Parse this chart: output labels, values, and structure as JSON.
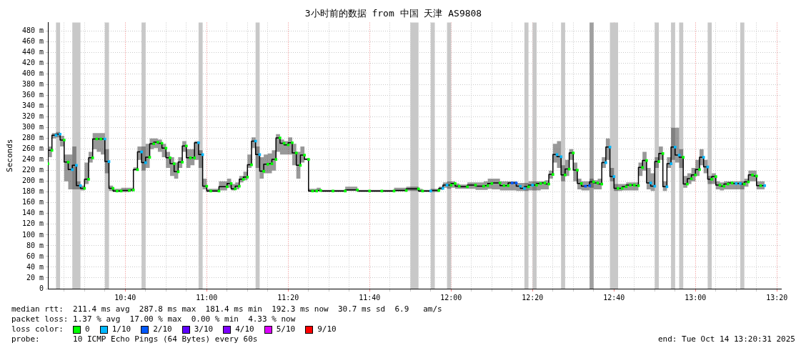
{
  "chart_data": {
    "type": "step",
    "title": "3小时前的数据 from 中国 天津 AS9808",
    "ylabel": "Seconds",
    "legend_title": "loss color:",
    "legend": "bottom",
    "grid": true,
    "annotations": [
      "median rtt:  211.4 ms avg  287.8 ms max  181.4 ms min  192.3 ms now  30.7 ms sd  6.9   am/s",
      "packet loss: 1.37 % avg  17.00 % max  0.00 % min  4.33 % now",
      "probe:       10 ICMP Echo Pings (64 Bytes) every 60s",
      "end: Tue Oct 14 13:20:31 2025"
    ],
    "xlim": [
      "2025-10-14T10:21",
      "2025-10-14T13:21"
    ],
    "xticks": [
      {
        "value": "2025-10-14T10:25",
        "label": null
      },
      {
        "value": "2025-10-14T10:30",
        "label": null
      },
      {
        "value": "2025-10-14T10:35",
        "label": null
      },
      {
        "value": "2025-10-14T10:40",
        "label": "10:40"
      },
      {
        "value": "2025-10-14T10:45",
        "label": null
      },
      {
        "value": "2025-10-14T10:50",
        "label": null
      },
      {
        "value": "2025-10-14T10:55",
        "label": null
      },
      {
        "value": "2025-10-14T11:00",
        "label": "11:00"
      },
      {
        "value": "2025-10-14T11:05",
        "label": null
      },
      {
        "value": "2025-10-14T11:10",
        "label": null
      },
      {
        "value": "2025-10-14T11:15",
        "label": null
      },
      {
        "value": "2025-10-14T11:20",
        "label": "11:20"
      },
      {
        "value": "2025-10-14T11:25",
        "label": null
      },
      {
        "value": "2025-10-14T11:30",
        "label": null
      },
      {
        "value": "2025-10-14T11:35",
        "label": null
      },
      {
        "value": "2025-10-14T11:40",
        "label": "11:40"
      },
      {
        "value": "2025-10-14T11:45",
        "label": null
      },
      {
        "value": "2025-10-14T11:50",
        "label": null
      },
      {
        "value": "2025-10-14T11:55",
        "label": null
      },
      {
        "value": "2025-10-14T12:00",
        "label": "12:00"
      },
      {
        "value": "2025-10-14T12:05",
        "label": null
      },
      {
        "value": "2025-10-14T12:10",
        "label": null
      },
      {
        "value": "2025-10-14T12:15",
        "label": null
      },
      {
        "value": "2025-10-14T12:20",
        "label": "12:20"
      },
      {
        "value": "2025-10-14T12:25",
        "label": null
      },
      {
        "value": "2025-10-14T12:30",
        "label": null
      },
      {
        "value": "2025-10-14T12:35",
        "label": null
      },
      {
        "value": "2025-10-14T12:40",
        "label": "12:40"
      },
      {
        "value": "2025-10-14T12:45",
        "label": null
      },
      {
        "value": "2025-10-14T12:50",
        "label": null
      },
      {
        "value": "2025-10-14T12:55",
        "label": null
      },
      {
        "value": "2025-10-14T13:00",
        "label": "13:00"
      },
      {
        "value": "2025-10-14T13:05",
        "label": null
      },
      {
        "value": "2025-10-14T13:10",
        "label": null
      },
      {
        "value": "2025-10-14T13:15",
        "label": null
      },
      {
        "value": "2025-10-14T13:20",
        "label": "13:20"
      }
    ],
    "ylim": [
      0,
      496
    ],
    "yticks": [
      {
        "value": 0,
        "label": "0"
      },
      {
        "value": 20,
        "label": "20 m"
      },
      {
        "value": 40,
        "label": "40 m"
      },
      {
        "value": 60,
        "label": "60 m"
      },
      {
        "value": 80,
        "label": "80 m"
      },
      {
        "value": 100,
        "label": "100 m"
      },
      {
        "value": 120,
        "label": "120 m"
      },
      {
        "value": 140,
        "label": "140 m"
      },
      {
        "value": 160,
        "label": "160 m"
      },
      {
        "value": 180,
        "label": "180 m"
      },
      {
        "value": 200,
        "label": "200 m"
      },
      {
        "value": 220,
        "label": "220 m"
      },
      {
        "value": 240,
        "label": "240 m"
      },
      {
        "value": 260,
        "label": "260 m"
      },
      {
        "value": 280,
        "label": "280 m"
      },
      {
        "value": 300,
        "label": "300 m"
      },
      {
        "value": 320,
        "label": "320 m"
      },
      {
        "value": 340,
        "label": "340 m"
      },
      {
        "value": 360,
        "label": "360 m"
      },
      {
        "value": 380,
        "label": "380 m"
      },
      {
        "value": 400,
        "label": "400 m"
      },
      {
        "value": 420,
        "label": "420 m"
      },
      {
        "value": 440,
        "label": "440 m"
      },
      {
        "value": 460,
        "label": "460 m"
      },
      {
        "value": 480,
        "label": "480 m"
      }
    ],
    "bands": [
      {
        "axis": "x",
        "from": "2025-10-14T10:23",
        "to": "2025-10-14T10:24",
        "color": "#c8c8c8"
      },
      {
        "axis": "x",
        "from": "2025-10-14T10:27",
        "to": "2025-10-14T10:29",
        "color": "#c8c8c8"
      },
      {
        "axis": "x",
        "from": "2025-10-14T10:35",
        "to": "2025-10-14T10:36",
        "color": "#c8c8c8"
      },
      {
        "axis": "x",
        "from": "2025-10-14T10:44",
        "to": "2025-10-14T10:45",
        "color": "#c8c8c8"
      },
      {
        "axis": "x",
        "from": "2025-10-14T10:58",
        "to": "2025-10-14T10:59",
        "color": "#c8c8c8"
      },
      {
        "axis": "x",
        "from": "2025-10-14T11:12",
        "to": "2025-10-14T11:13",
        "color": "#c8c8c8"
      },
      {
        "axis": "x",
        "from": "2025-10-14T11:50",
        "to": "2025-10-14T11:52",
        "color": "#c8c8c8"
      },
      {
        "axis": "x",
        "from": "2025-10-14T11:55",
        "to": "2025-10-14T11:56",
        "color": "#c8c8c8"
      },
      {
        "axis": "x",
        "from": "2025-10-14T11:59",
        "to": "2025-10-14T12:00",
        "color": "#c8c8c8"
      },
      {
        "axis": "x",
        "from": "2025-10-14T12:18",
        "to": "2025-10-14T12:19",
        "color": "#c8c8c8"
      },
      {
        "axis": "x",
        "from": "2025-10-14T12:20",
        "to": "2025-10-14T12:21",
        "color": "#c8c8c8"
      },
      {
        "axis": "x",
        "from": "2025-10-14T12:27",
        "to": "2025-10-14T12:28",
        "color": "#c8c8c8"
      },
      {
        "axis": "x",
        "from": "2025-10-14T12:34",
        "to": "2025-10-14T12:35",
        "color": "#a0a0a0"
      },
      {
        "axis": "x",
        "from": "2025-10-14T12:39",
        "to": "2025-10-14T12:41",
        "color": "#c8c8c8"
      },
      {
        "axis": "x",
        "from": "2025-10-14T12:50",
        "to": "2025-10-14T12:51",
        "color": "#c8c8c8"
      },
      {
        "axis": "x",
        "from": "2025-10-14T12:54",
        "to": "2025-10-14T12:55",
        "color": "#c8c8c8"
      },
      {
        "axis": "x",
        "from": "2025-10-14T12:56",
        "to": "2025-10-14T12:57",
        "color": "#c8c8c8"
      },
      {
        "axis": "x",
        "from": "2025-10-14T13:03",
        "to": "2025-10-14T13:04",
        "color": "#c8c8c8"
      },
      {
        "axis": "x",
        "from": "2025-10-14T13:11",
        "to": "2025-10-14T13:12",
        "color": "#c8c8c8"
      }
    ],
    "series": [
      {
        "type": "step",
        "color": "#000000",
        "x": [
          "2025-10-14T10:21",
          "2025-10-14T10:22",
          "2025-10-14T10:23",
          "2025-10-14T10:24",
          "2025-10-14T10:25",
          "2025-10-14T10:26",
          "2025-10-14T10:27",
          "2025-10-14T10:28",
          "2025-10-14T10:29",
          "2025-10-14T10:30",
          "2025-10-14T10:31",
          "2025-10-14T10:32",
          "2025-10-14T10:33",
          "2025-10-14T10:34",
          "2025-10-14T10:35",
          "2025-10-14T10:36",
          "2025-10-14T10:37",
          "2025-10-14T10:38",
          "2025-10-14T10:39",
          "2025-10-14T10:41",
          "2025-10-14T10:42",
          "2025-10-14T10:43",
          "2025-10-14T10:44",
          "2025-10-14T10:45",
          "2025-10-14T10:46",
          "2025-10-14T10:47",
          "2025-10-14T10:48",
          "2025-10-14T10:49",
          "2025-10-14T10:50",
          "2025-10-14T10:51",
          "2025-10-14T10:52",
          "2025-10-14T10:53",
          "2025-10-14T10:54",
          "2025-10-14T10:55",
          "2025-10-14T10:56",
          "2025-10-14T10:57",
          "2025-10-14T10:58",
          "2025-10-14T10:59",
          "2025-10-14T11:00",
          "2025-10-14T11:01",
          "2025-10-14T11:03",
          "2025-10-14T11:05",
          "2025-10-14T11:06",
          "2025-10-14T11:07",
          "2025-10-14T11:08",
          "2025-10-14T11:09",
          "2025-10-14T11:10",
          "2025-10-14T11:11",
          "2025-10-14T11:12",
          "2025-10-14T11:13",
          "2025-10-14T11:14",
          "2025-10-14T11:15",
          "2025-10-14T11:16",
          "2025-10-14T11:17",
          "2025-10-14T11:18",
          "2025-10-14T11:19",
          "2025-10-14T11:20",
          "2025-10-14T11:21",
          "2025-10-14T11:22",
          "2025-10-14T11:23",
          "2025-10-14T11:24",
          "2025-10-14T11:25",
          "2025-10-14T11:26",
          "2025-10-14T11:27",
          "2025-10-14T11:28",
          "2025-10-14T11:31",
          "2025-10-14T11:34",
          "2025-10-14T11:37",
          "2025-10-14T11:40",
          "2025-10-14T11:43",
          "2025-10-14T11:46",
          "2025-10-14T11:49",
          "2025-10-14T11:52",
          "2025-10-14T11:53",
          "2025-10-14T11:55",
          "2025-10-14T11:57",
          "2025-10-14T11:58",
          "2025-10-14T11:59",
          "2025-10-14T12:00",
          "2025-10-14T12:01",
          "2025-10-14T12:02",
          "2025-10-14T12:04",
          "2025-10-14T12:06",
          "2025-10-14T12:08",
          "2025-10-14T12:09",
          "2025-10-14T12:10",
          "2025-10-14T12:12",
          "2025-10-14T12:13",
          "2025-10-14T12:14",
          "2025-10-14T12:15",
          "2025-10-14T12:16",
          "2025-10-14T12:17",
          "2025-10-14T12:18",
          "2025-10-14T12:19",
          "2025-10-14T12:20",
          "2025-10-14T12:21",
          "2025-10-14T12:22",
          "2025-10-14T12:23",
          "2025-10-14T12:24",
          "2025-10-14T12:25",
          "2025-10-14T12:26",
          "2025-10-14T12:27",
          "2025-10-14T12:28",
          "2025-10-14T12:29",
          "2025-10-14T12:30",
          "2025-10-14T12:31",
          "2025-10-14T12:32",
          "2025-10-14T12:33",
          "2025-10-14T12:34",
          "2025-10-14T12:35",
          "2025-10-14T12:36",
          "2025-10-14T12:37",
          "2025-10-14T12:38",
          "2025-10-14T12:39",
          "2025-10-14T12:40",
          "2025-10-14T12:41",
          "2025-10-14T12:42",
          "2025-10-14T12:43",
          "2025-10-14T12:44",
          "2025-10-14T12:45",
          "2025-10-14T12:46",
          "2025-10-14T12:47",
          "2025-10-14T12:48",
          "2025-10-14T12:49",
          "2025-10-14T12:50",
          "2025-10-14T12:51",
          "2025-10-14T12:52",
          "2025-10-14T12:53",
          "2025-10-14T12:54",
          "2025-10-14T12:55",
          "2025-10-14T12:56",
          "2025-10-14T12:57",
          "2025-10-14T12:58",
          "2025-10-14T12:59",
          "2025-10-14T13:00",
          "2025-10-14T13:01",
          "2025-10-14T13:02",
          "2025-10-14T13:03",
          "2025-10-14T13:04",
          "2025-10-14T13:05",
          "2025-10-14T13:06",
          "2025-10-14T13:07",
          "2025-10-14T13:08",
          "2025-10-14T13:09",
          "2025-10-14T13:10",
          "2025-10-14T13:11",
          "2025-10-14T13:12",
          "2025-10-14T13:13",
          "2025-10-14T13:14",
          "2025-10-14T13:15",
          "2025-10-14T13:16",
          "2025-10-14T13:17"
        ],
        "values": [
          233,
          258,
          286,
          288,
          277,
          236,
          222,
          230,
          192,
          187,
          204,
          244,
          279,
          279,
          279,
          237,
          187,
          182,
          182,
          183,
          184,
          222,
          255,
          235,
          245,
          270,
          273,
          271,
          262,
          244,
          233,
          218,
          236,
          266,
          244,
          244,
          272,
          250,
          191,
          182,
          182,
          190,
          196,
          186,
          191,
          204,
          208,
          231,
          275,
          250,
          219,
          232,
          233,
          241,
          281,
          271,
          268,
          272,
          253,
          230,
          249,
          241,
          182,
          182,
          183,
          182,
          182,
          184,
          182,
          182,
          182,
          183,
          186,
          182,
          182,
          183,
          187,
          193,
          193,
          196,
          191,
          190,
          193,
          191,
          192,
          196,
          197,
          192,
          192,
          197,
          197,
          191,
          187,
          190,
          193,
          193,
          196,
          197,
          195,
          213,
          250,
          246,
          212,
          223,
          253,
          221,
          196,
          191,
          192,
          199,
          197,
          195,
          235,
          264,
          209,
          187,
          187,
          190,
          193,
          193,
          192,
          226,
          239,
          197,
          191,
          237,
          252,
          190,
          233,
          264,
          249,
          245,
          195,
          205,
          212,
          222,
          245,
          227,
          204,
          209,
          193,
          191,
          195,
          197,
          196,
          196,
          195,
          199,
          212,
          210,
          192,
          192
        ],
        "lower": [
          220,
          245,
          280,
          282,
          265,
          200,
          185,
          185,
          185,
          183,
          195,
          235,
          260,
          255,
          250,
          215,
          182,
          180,
          180,
          180,
          181,
          220,
          240,
          220,
          225,
          260,
          262,
          255,
          245,
          225,
          210,
          205,
          225,
          255,
          225,
          230,
          240,
          225,
          185,
          180,
          180,
          183,
          188,
          183,
          185,
          198,
          202,
          225,
          262,
          225,
          205,
          215,
          215,
          220,
          255,
          250,
          250,
          250,
          230,
          205,
          235,
          240,
          180,
          180,
          181,
          180,
          180,
          182,
          180,
          180,
          180,
          181,
          182,
          180,
          180,
          180,
          184,
          188,
          186,
          188,
          186,
          186,
          186,
          184,
          184,
          186,
          185,
          183,
          183,
          183,
          183,
          182,
          182,
          182,
          183,
          183,
          183,
          185,
          185,
          205,
          235,
          225,
          200,
          210,
          240,
          200,
          185,
          183,
          183,
          188,
          185,
          185,
          225,
          240,
          200,
          182,
          182,
          183,
          183,
          183,
          183,
          210,
          220,
          185,
          182,
          225,
          240,
          182,
          225,
          240,
          235,
          225,
          188,
          195,
          200,
          210,
          230,
          215,
          195,
          195,
          185,
          183,
          185,
          185,
          185,
          185,
          185,
          190,
          200,
          200,
          185,
          185
        ],
        "upper": [
          260,
          265,
          290,
          292,
          285,
          250,
          250,
          265,
          200,
          192,
          235,
          255,
          290,
          290,
          290,
          260,
          192,
          186,
          186,
          188,
          188,
          226,
          265,
          265,
          270,
          280,
          280,
          278,
          270,
          255,
          245,
          235,
          245,
          275,
          260,
          260,
          275,
          258,
          205,
          186,
          186,
          200,
          205,
          195,
          198,
          210,
          218,
          250,
          282,
          265,
          245,
          250,
          252,
          258,
          288,
          278,
          275,
          282,
          270,
          255,
          265,
          243,
          186,
          186,
          188,
          184,
          184,
          190,
          184,
          184,
          184,
          188,
          190,
          186,
          184,
          186,
          190,
          198,
          200,
          200,
          196,
          194,
          198,
          198,
          200,
          205,
          205,
          200,
          200,
          200,
          200,
          197,
          197,
          197,
          200,
          200,
          200,
          200,
          202,
          220,
          270,
          275,
          230,
          240,
          260,
          235,
          205,
          200,
          200,
          205,
          202,
          205,
          245,
          280,
          225,
          195,
          195,
          195,
          198,
          198,
          198,
          235,
          255,
          225,
          215,
          245,
          265,
          200,
          245,
          300,
          300,
          260,
          210,
          215,
          225,
          240,
          260,
          240,
          210,
          215,
          200,
          198,
          200,
          200,
          200,
          200,
          200,
          205,
          220,
          220,
          200,
          200
        ]
      },
      {
        "type": "scatter",
        "name": "0",
        "color": "#00ff00",
        "marker": "square",
        "x": [
          "2025-10-14T10:21",
          "2025-10-14T10:22",
          "2025-10-14T10:25",
          "2025-10-14T10:26",
          "2025-10-14T10:30",
          "2025-10-14T10:31",
          "2025-10-14T10:32",
          "2025-10-14T10:33",
          "2025-10-14T10:34",
          "2025-10-14T10:37",
          "2025-10-14T10:38",
          "2025-10-14T10:39",
          "2025-10-14T10:41",
          "2025-10-14T10:42",
          "2025-10-14T10:43",
          "2025-10-14T10:46",
          "2025-10-14T10:47",
          "2025-10-14T10:48",
          "2025-10-14T10:49",
          "2025-10-14T10:50",
          "2025-10-14T10:51",
          "2025-10-14T10:52",
          "2025-10-14T10:53",
          "2025-10-14T10:54",
          "2025-10-14T10:55",
          "2025-10-14T10:56",
          "2025-10-14T10:57",
          "2025-10-14T11:00",
          "2025-10-14T11:01",
          "2025-10-14T11:03",
          "2025-10-14T11:05",
          "2025-10-14T11:06",
          "2025-10-14T11:07",
          "2025-10-14T11:08",
          "2025-10-14T11:09",
          "2025-10-14T11:10",
          "2025-10-14T11:11",
          "2025-10-14T11:14",
          "2025-10-14T11:15",
          "2025-10-14T11:16",
          "2025-10-14T11:17",
          "2025-10-14T11:18",
          "2025-10-14T11:19",
          "2025-10-14T11:20",
          "2025-10-14T11:21",
          "2025-10-14T11:22",
          "2025-10-14T11:23",
          "2025-10-14T11:24",
          "2025-10-14T11:25",
          "2025-10-14T11:26",
          "2025-10-14T11:27",
          "2025-10-14T11:28",
          "2025-10-14T11:31",
          "2025-10-14T11:34",
          "2025-10-14T11:37",
          "2025-10-14T11:40",
          "2025-10-14T11:43",
          "2025-10-14T11:46",
          "2025-10-14T11:49",
          "2025-10-14T11:52",
          "2025-10-14T11:53",
          "2025-10-14T11:57",
          "2025-10-14T12:00",
          "2025-10-14T12:01",
          "2025-10-14T12:02",
          "2025-10-14T12:04",
          "2025-10-14T12:06",
          "2025-10-14T12:08",
          "2025-10-14T12:09",
          "2025-10-14T12:10",
          "2025-10-14T12:12",
          "2025-10-14T12:13",
          "2025-10-14T12:14",
          "2025-10-14T12:19",
          "2025-10-14T12:21",
          "2025-10-14T12:22",
          "2025-10-14T12:23",
          "2025-10-14T12:24",
          "2025-10-14T12:25",
          "2025-10-14T12:28",
          "2025-10-14T12:29",
          "2025-10-14T12:30",
          "2025-10-14T12:31",
          "2025-10-14T12:32",
          "2025-10-14T12:35",
          "2025-10-14T12:36",
          "2025-10-14T12:37",
          "2025-10-14T12:41",
          "2025-10-14T12:42",
          "2025-10-14T12:43",
          "2025-10-14T12:44",
          "2025-10-14T12:45",
          "2025-10-14T12:46",
          "2025-10-14T12:47",
          "2025-10-14T12:48",
          "2025-10-14T12:51",
          "2025-10-14T12:52",
          "2025-10-14T12:57",
          "2025-10-14T12:58",
          "2025-10-14T12:59",
          "2025-10-14T13:00",
          "2025-10-14T13:01",
          "2025-10-14T13:04",
          "2025-10-14T13:05",
          "2025-10-14T13:06",
          "2025-10-14T13:07",
          "2025-10-14T13:08",
          "2025-10-14T13:09",
          "2025-10-14T13:12",
          "2025-10-14T13:13",
          "2025-10-14T13:14",
          "2025-10-14T13:15",
          "2025-10-14T13:16"
        ],
        "values": [
          233,
          258,
          277,
          236,
          187,
          204,
          244,
          279,
          279,
          187,
          182,
          182,
          183,
          184,
          222,
          245,
          270,
          273,
          271,
          262,
          244,
          233,
          218,
          236,
          266,
          244,
          244,
          191,
          182,
          182,
          190,
          196,
          186,
          191,
          204,
          208,
          231,
          219,
          232,
          233,
          241,
          281,
          271,
          268,
          272,
          253,
          230,
          249,
          241,
          182,
          182,
          183,
          182,
          182,
          184,
          182,
          182,
          182,
          183,
          186,
          182,
          183,
          193,
          196,
          191,
          190,
          193,
          191,
          192,
          196,
          197,
          192,
          192,
          190,
          193,
          196,
          197,
          195,
          213,
          212,
          223,
          253,
          221,
          196,
          199,
          197,
          195,
          187,
          187,
          190,
          193,
          193,
          192,
          226,
          239,
          237,
          252,
          245,
          195,
          205,
          212,
          222,
          204,
          209,
          193,
          191,
          195,
          197,
          195,
          199,
          212,
          210,
          192
        ]
      },
      {
        "type": "scatter",
        "name": "1/10",
        "color": "#00b8ff",
        "marker": "square",
        "x": [
          "2025-10-14T10:23",
          "2025-10-14T10:24",
          "2025-10-14T10:27",
          "2025-10-14T10:28",
          "2025-10-14T10:29",
          "2025-10-14T10:35",
          "2025-10-14T10:36",
          "2025-10-14T10:44",
          "2025-10-14T10:45",
          "2025-10-14T10:58",
          "2025-10-14T10:59",
          "2025-10-14T11:12",
          "2025-10-14T11:13",
          "2025-10-14T11:55",
          "2025-10-14T11:58",
          "2025-10-14T11:59",
          "2025-10-14T12:17",
          "2025-10-14T12:18",
          "2025-10-14T12:20",
          "2025-10-14T12:26",
          "2025-10-14T12:27",
          "2025-10-14T12:38",
          "2025-10-14T12:39",
          "2025-10-14T12:40",
          "2025-10-14T12:49",
          "2025-10-14T12:50",
          "2025-10-14T12:53",
          "2025-10-14T12:54",
          "2025-10-14T12:55",
          "2025-10-14T12:56",
          "2025-10-14T13:02",
          "2025-10-14T13:03",
          "2025-10-14T13:10",
          "2025-10-14T13:11",
          "2025-10-14T13:17"
        ],
        "values": [
          286,
          288,
          222,
          230,
          192,
          279,
          237,
          255,
          235,
          272,
          250,
          275,
          250,
          182,
          187,
          193,
          191,
          187,
          193,
          250,
          246,
          235,
          264,
          209,
          197,
          191,
          190,
          233,
          264,
          249,
          245,
          227,
          196,
          196,
          192
        ]
      },
      {
        "type": "scatter",
        "name": "2/10",
        "color": "#0059ff",
        "marker": "square",
        "x": [
          "2025-10-14T12:15",
          "2025-10-14T12:16",
          "2025-10-14T12:33",
          "2025-10-14T12:34"
        ],
        "values": [
          197,
          197,
          191,
          192
        ]
      },
      {
        "type": "scatter",
        "name": "3/10",
        "color": "#5e00ff",
        "marker": "square"
      },
      {
        "type": "scatter",
        "name": "4/10",
        "color": "#7e00ff",
        "marker": "square"
      },
      {
        "type": "scatter",
        "name": "5/10",
        "color": "#dd00ff",
        "marker": "square"
      },
      {
        "type": "scatter",
        "name": "9/10",
        "color": "#ff0000",
        "marker": "square"
      }
    ]
  }
}
